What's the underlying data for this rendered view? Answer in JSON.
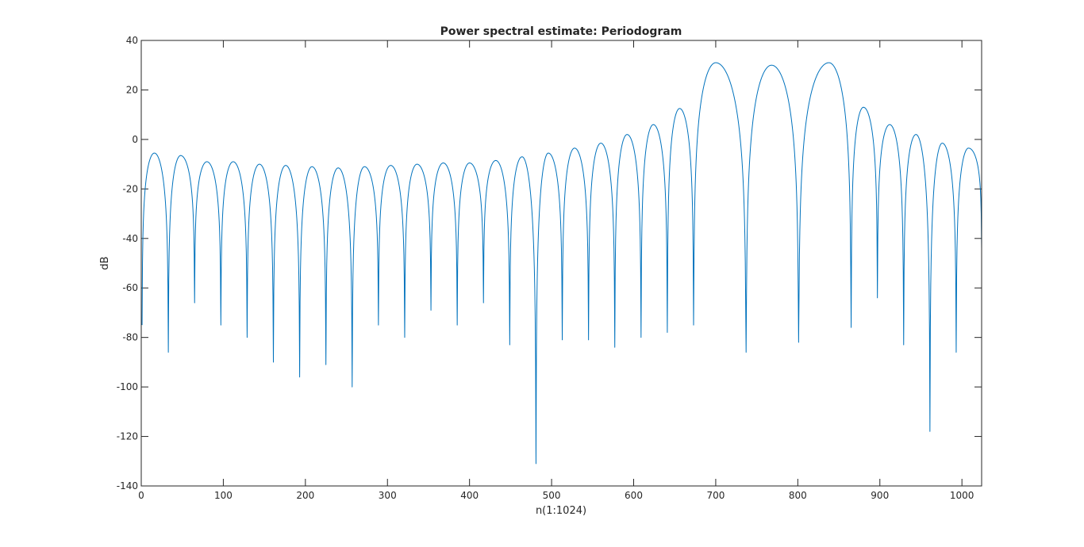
{
  "chart_data": {
    "type": "line",
    "title": "Power spectral estimate: Periodogram",
    "xlabel": "n(1:1024)",
    "ylabel": "dB",
    "xlim": [
      0,
      1024
    ],
    "ylim": [
      -140,
      40
    ],
    "xticks": [
      0,
      100,
      200,
      300,
      400,
      500,
      600,
      700,
      800,
      900,
      1000
    ],
    "yticks": [
      40,
      20,
      0,
      -20,
      -40,
      -60,
      -80,
      -100,
      -120,
      -140
    ],
    "xtick_labels": [
      "0",
      "100",
      "200",
      "300",
      "400",
      "500",
      "600",
      "700",
      "800",
      "900",
      "1000"
    ],
    "ytick_labels": [
      "40",
      "20",
      "0",
      "-20",
      "-40",
      "-60",
      "-80",
      "-100",
      "-120",
      "-140"
    ],
    "grid": false,
    "line_color": "#0072bd",
    "series": [
      {
        "x": [
          1,
          16,
          33,
          48,
          65,
          80,
          97,
          112,
          129,
          144,
          161,
          176,
          193,
          208,
          225,
          240,
          257,
          272,
          289,
          304,
          321,
          336,
          353,
          368,
          385,
          400,
          417,
          432,
          449,
          464,
          481,
          496,
          513,
          528,
          545,
          560,
          577,
          592,
          609,
          624,
          641,
          656,
          673,
          700,
          737,
          768,
          801,
          838,
          865,
          880,
          897,
          912,
          929,
          944,
          961,
          976,
          993,
          1008,
          1024
        ],
        "y": [
          -75,
          -5.5,
          -86,
          -6.5,
          -66,
          -9,
          -75,
          -9,
          -80,
          -10,
          -90,
          -10.5,
          -96,
          -11,
          -91,
          -11.5,
          -100,
          -11,
          -75,
          -10.5,
          -80,
          -10,
          -69,
          -9.5,
          -75,
          -9.5,
          -66,
          -8.5,
          -83,
          -7,
          -131,
          -5.5,
          -81,
          -3.5,
          -81,
          -1.5,
          -84,
          2,
          -80,
          6,
          -78,
          12.5,
          -75,
          31,
          -86,
          30,
          -82,
          31,
          -76,
          13,
          -64,
          6,
          -83,
          2,
          -118,
          -1.5,
          -86,
          -3.5,
          -44
        ]
      }
    ]
  }
}
